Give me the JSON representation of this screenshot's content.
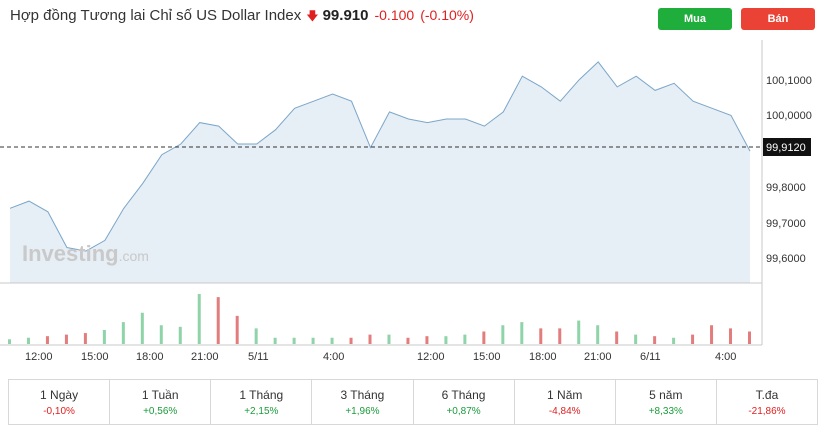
{
  "header": {
    "title": "Hợp đồng Tương lai Chỉ số US Dollar Index",
    "direction_icon": "down-arrow-icon",
    "price": "99.910",
    "change": "-0.100",
    "change_pct": "(-0.10%)",
    "buy_label": "Mua",
    "sell_label": "Bán"
  },
  "colors": {
    "line": "#7ba6c9",
    "area": "#e6eef6",
    "up_bar": "#8fd3a8",
    "down_bar": "#e37c7c",
    "buy": "#1fae3b",
    "sell": "#ea4335",
    "negative": "#e02020",
    "positive": "#1a9c3a"
  },
  "chart": {
    "watermark": "Investing",
    "watermark_suffix": ".com",
    "current_label": "99,9120",
    "y_ticks": [
      "100,1000",
      "100,0000",
      "99,8000",
      "99,7000",
      "99,6000"
    ],
    "x_ticks": [
      "12:00",
      "15:00",
      "18:00",
      "21:00",
      "5/11",
      "4:00",
      "12:00",
      "15:00",
      "18:00",
      "21:00",
      "6/11",
      "4:00"
    ]
  },
  "chart_data": {
    "type": "area",
    "title": "Hợp đồng Tương lai Chỉ số US Dollar Index",
    "xlabel": "",
    "ylabel": "",
    "ylim": [
      99.53,
      100.2
    ],
    "grid": false,
    "current_value": 99.912,
    "x": [
      "10:00",
      "12:00",
      "13:00",
      "14:00",
      "15:00",
      "16:00",
      "17:00",
      "18:00",
      "19:00",
      "20:00",
      "21:00",
      "22:00",
      "23:00",
      "5/11 00:00",
      "01:00",
      "02:00",
      "03:00",
      "04:00",
      "05:00",
      "06:00",
      "07:00",
      "09:00",
      "12:00",
      "13:00",
      "14:00",
      "15:00",
      "16:00",
      "17:00",
      "18:00",
      "19:00",
      "20:00",
      "21:00",
      "22:00",
      "23:00",
      "6/11 00:00",
      "01:00",
      "02:00",
      "03:00",
      "04:00",
      "05:00"
    ],
    "series": [
      {
        "name": "Price",
        "values": [
          99.75,
          99.77,
          99.74,
          99.64,
          99.63,
          99.66,
          99.75,
          99.82,
          99.9,
          99.93,
          99.99,
          99.98,
          99.93,
          99.93,
          99.97,
          100.03,
          100.05,
          100.07,
          100.05,
          99.92,
          100.02,
          100.0,
          99.99,
          100.0,
          100.0,
          99.98,
          100.02,
          100.12,
          100.09,
          100.05,
          100.11,
          100.16,
          100.09,
          100.12,
          100.08,
          100.1,
          100.05,
          100.03,
          100.01,
          99.91
        ]
      },
      {
        "name": "Volume",
        "values": [
          3,
          4,
          5,
          6,
          7,
          9,
          14,
          20,
          12,
          11,
          32,
          30,
          18,
          10,
          4,
          4,
          4,
          4,
          4,
          6,
          6,
          4,
          5,
          5,
          6,
          8,
          12,
          14,
          10,
          10,
          15,
          12,
          8,
          6,
          5,
          4,
          6,
          12,
          10,
          8
        ]
      }
    ]
  },
  "performance": [
    {
      "label": "1 Ngày",
      "value": "-0,10%",
      "sign": "neg"
    },
    {
      "label": "1 Tuần",
      "value": "+0,56%",
      "sign": "pos"
    },
    {
      "label": "1 Tháng",
      "value": "+2,15%",
      "sign": "pos"
    },
    {
      "label": "3 Tháng",
      "value": "+1,96%",
      "sign": "pos"
    },
    {
      "label": "6 Tháng",
      "value": "+0,87%",
      "sign": "pos"
    },
    {
      "label": "1 Năm",
      "value": "-4,84%",
      "sign": "neg"
    },
    {
      "label": "5 năm",
      "value": "+8,33%",
      "sign": "pos"
    },
    {
      "label": "T.đa",
      "value": "-21,86%",
      "sign": "neg"
    }
  ]
}
